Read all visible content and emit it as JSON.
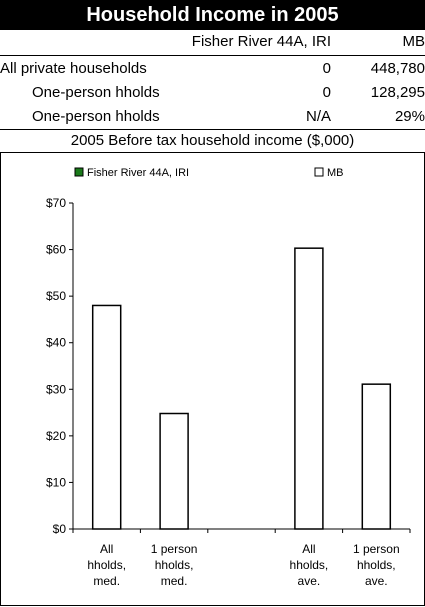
{
  "header": {
    "title": "Household Income in 2005"
  },
  "table": {
    "columns": [
      "Fisher River 44A, IRI",
      "MB"
    ],
    "rows": [
      {
        "label": "All private households",
        "local": "0",
        "province": "448,780"
      },
      {
        "label": "One-person hholds",
        "local": "0",
        "province": "128,295"
      },
      {
        "label": "One-person hholds",
        "local": "N/A",
        "province": "29%"
      }
    ]
  },
  "chart_data": {
    "type": "bar",
    "title": "2005 Before tax household income ($,000)",
    "categories": [
      "All hholds, med.",
      "1 person hholds, med.",
      "",
      "All hholds, ave.",
      "1 person hholds, ave."
    ],
    "category_lines": [
      [
        "All",
        "hholds,",
        "med."
      ],
      [
        "1 person",
        "hholds,",
        "med."
      ],
      [],
      [
        "All",
        "hholds,",
        "ave."
      ],
      [
        "1 person",
        "hholds,",
        "ave."
      ]
    ],
    "series": [
      {
        "name": "Fisher River 44A, IRI",
        "color": "#1a7a1a",
        "values": [
          0,
          0,
          null,
          0,
          0
        ]
      },
      {
        "name": "MB",
        "color": "#ffffff",
        "values": [
          48,
          24.8,
          null,
          60.3,
          31.1
        ]
      }
    ],
    "yticks": [
      "$0",
      "$10",
      "$20",
      "$30",
      "$40",
      "$50",
      "$60",
      "$70"
    ],
    "ylim": [
      0,
      70
    ],
    "legend_position": "top"
  }
}
